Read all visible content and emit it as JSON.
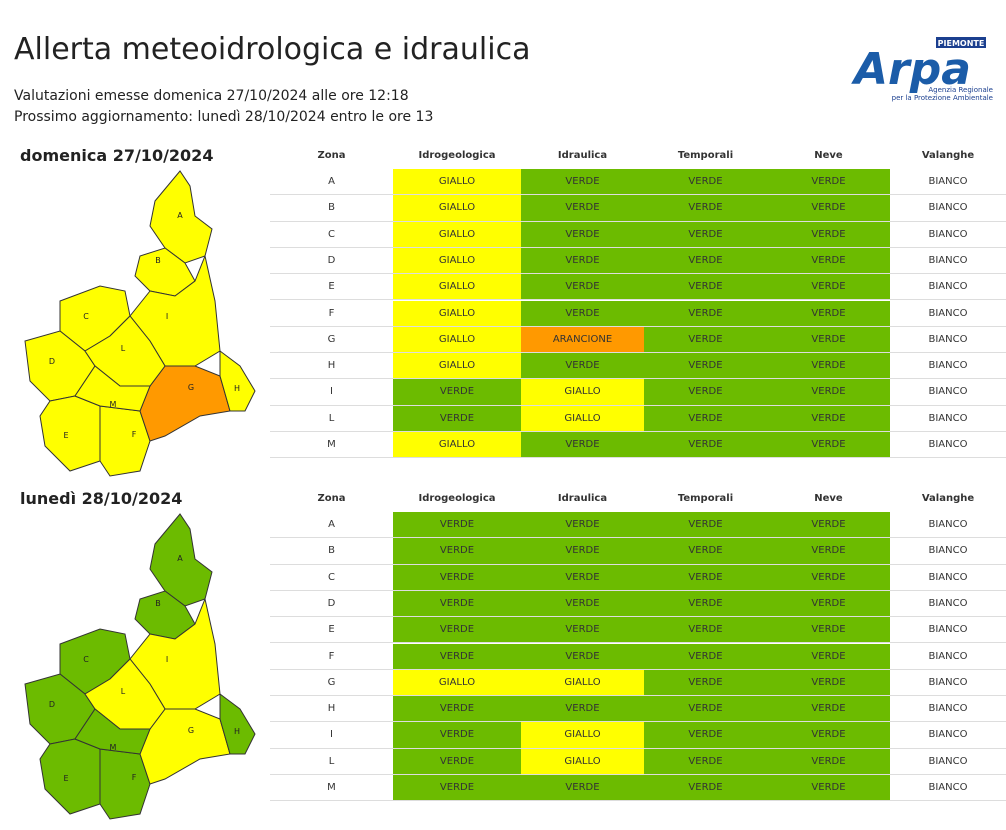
{
  "header": {
    "title": "Allerta meteoidrologica e idraulica",
    "issued": "Valutazioni emesse domenica 27/10/2024 alle ore 12:18",
    "next_update": "Prossimo aggiornamento: lunedì 28/10/2024 entro le ore 13"
  },
  "logo": {
    "region": "PIEMONTE",
    "name": "Arpa",
    "tagline_1": "Agenzia Regionale",
    "tagline_2": "per la Protezione Ambientale"
  },
  "level_colors": {
    "BIANCO": "#ffffff",
    "VERDE": "#6cbb00",
    "GIALLO": "#ffff00",
    "ARANCIONE": "#ff9900"
  },
  "days": [
    {
      "date": "domenica 27/10/2024",
      "columns": [
        "Zona",
        "Idrogeologica",
        "Idraulica",
        "Temporali",
        "Neve",
        "Valanghe"
      ],
      "rows": [
        [
          "A",
          "GIALLO",
          "VERDE",
          "VERDE",
          "VERDE",
          "BIANCO"
        ],
        [
          "B",
          "GIALLO",
          "VERDE",
          "VERDE",
          "VERDE",
          "BIANCO"
        ],
        [
          "C",
          "GIALLO",
          "VERDE",
          "VERDE",
          "VERDE",
          "BIANCO"
        ],
        [
          "D",
          "GIALLO",
          "VERDE",
          "VERDE",
          "VERDE",
          "BIANCO"
        ],
        [
          "E",
          "GIALLO",
          "VERDE",
          "VERDE",
          "VERDE",
          "BIANCO"
        ],
        [
          "F",
          "GIALLO",
          "VERDE",
          "VERDE",
          "VERDE",
          "BIANCO"
        ],
        [
          "G",
          "GIALLO",
          "ARANCIONE",
          "VERDE",
          "VERDE",
          "BIANCO"
        ],
        [
          "H",
          "GIALLO",
          "VERDE",
          "VERDE",
          "VERDE",
          "BIANCO"
        ],
        [
          "I",
          "VERDE",
          "GIALLO",
          "VERDE",
          "VERDE",
          "BIANCO"
        ],
        [
          "L",
          "VERDE",
          "GIALLO",
          "VERDE",
          "VERDE",
          "BIANCO"
        ],
        [
          "M",
          "GIALLO",
          "VERDE",
          "VERDE",
          "VERDE",
          "BIANCO"
        ]
      ]
    },
    {
      "date": "lunedì 28/10/2024",
      "columns": [
        "Zona",
        "Idrogeologica",
        "Idraulica",
        "Temporali",
        "Neve",
        "Valanghe"
      ],
      "rows": [
        [
          "A",
          "VERDE",
          "VERDE",
          "VERDE",
          "VERDE",
          "BIANCO"
        ],
        [
          "B",
          "VERDE",
          "VERDE",
          "VERDE",
          "VERDE",
          "BIANCO"
        ],
        [
          "C",
          "VERDE",
          "VERDE",
          "VERDE",
          "VERDE",
          "BIANCO"
        ],
        [
          "D",
          "VERDE",
          "VERDE",
          "VERDE",
          "VERDE",
          "BIANCO"
        ],
        [
          "E",
          "VERDE",
          "VERDE",
          "VERDE",
          "VERDE",
          "BIANCO"
        ],
        [
          "F",
          "VERDE",
          "VERDE",
          "VERDE",
          "VERDE",
          "BIANCO"
        ],
        [
          "G",
          "GIALLO",
          "GIALLO",
          "VERDE",
          "VERDE",
          "BIANCO"
        ],
        [
          "H",
          "VERDE",
          "VERDE",
          "VERDE",
          "VERDE",
          "BIANCO"
        ],
        [
          "I",
          "VERDE",
          "GIALLO",
          "VERDE",
          "VERDE",
          "BIANCO"
        ],
        [
          "L",
          "VERDE",
          "GIALLO",
          "VERDE",
          "VERDE",
          "BIANCO"
        ],
        [
          "M",
          "VERDE",
          "VERDE",
          "VERDE",
          "VERDE",
          "BIANCO"
        ]
      ]
    }
  ]
}
